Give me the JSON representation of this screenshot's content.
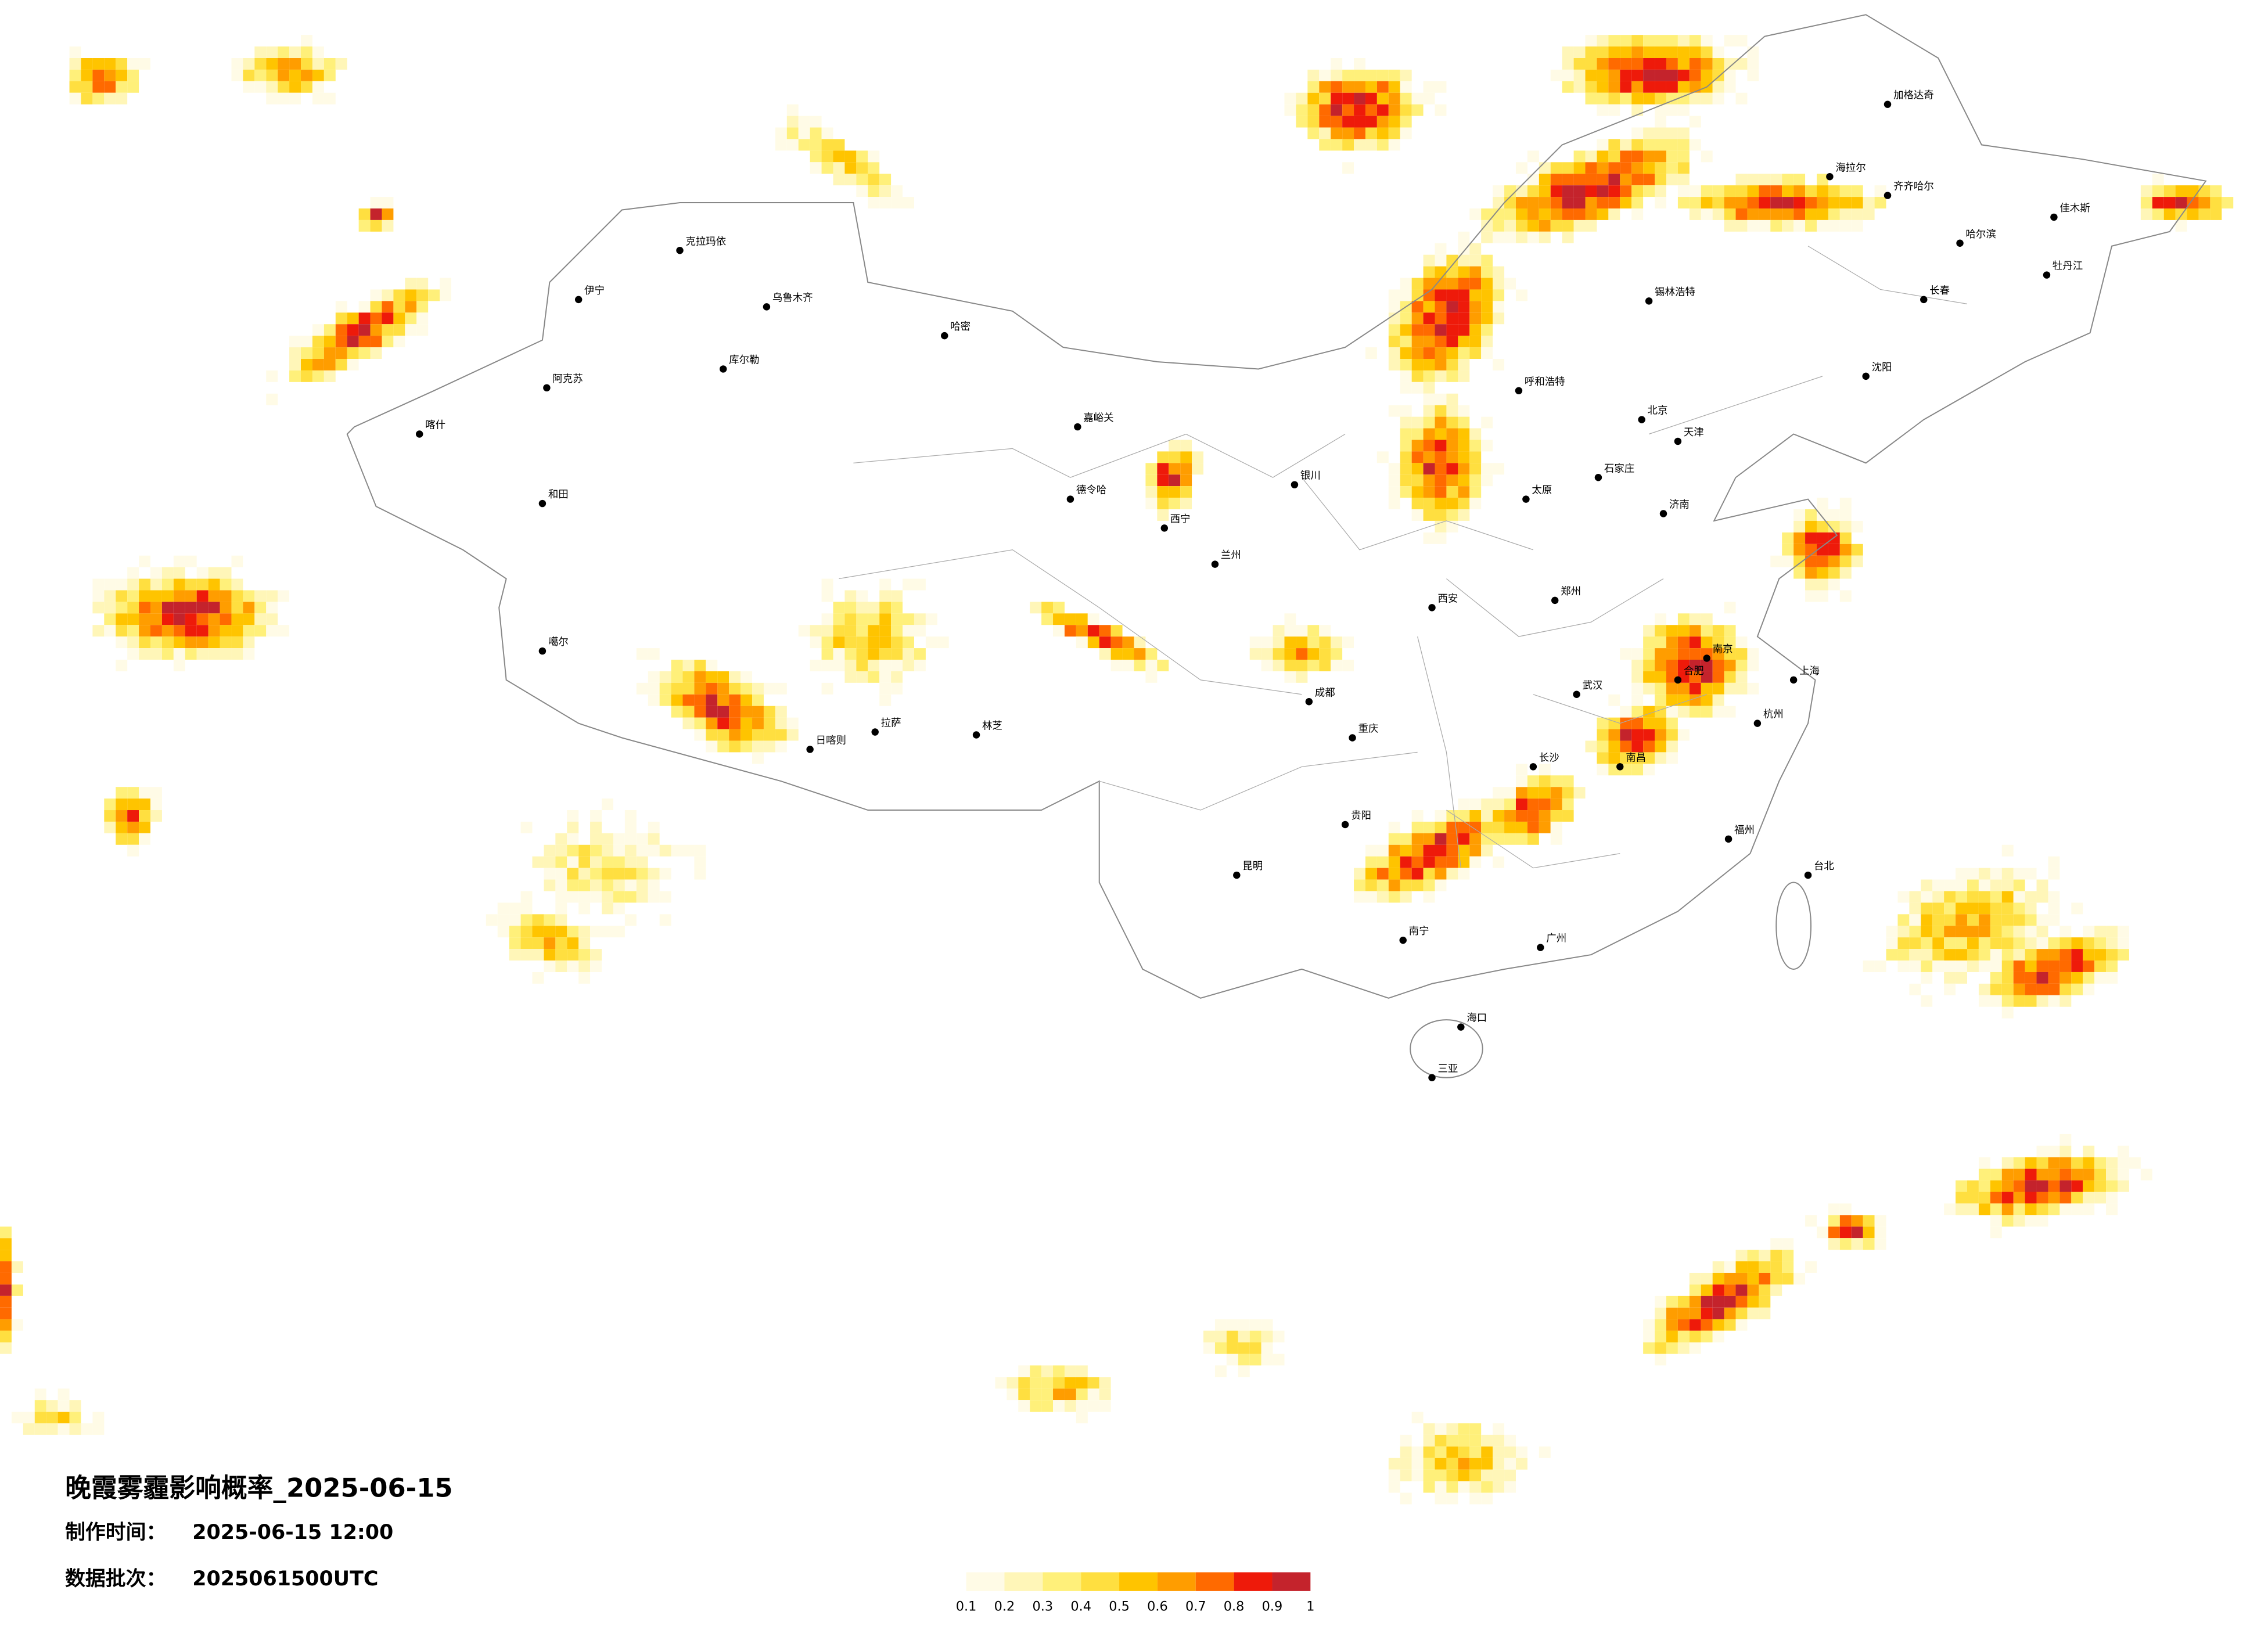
{
  "title": "晚霞雾霾影响概率_2025-06-15",
  "info": [
    {
      "label": "制作时间：",
      "value": "2025-06-15 12:00"
    },
    {
      "label": "数据批次：",
      "value": "2025061500UTC"
    }
  ],
  "legend": {
    "ticks": [
      0.1,
      0.2,
      0.3,
      0.4,
      0.5,
      0.6,
      0.7,
      0.8,
      0.9,
      1
    ],
    "colors": [
      "#fffbe6",
      "#fff6b8",
      "#fff07a",
      "#ffdf40",
      "#ffc400",
      "#ff9d00",
      "#ff6a00",
      "#ee1a0a",
      "#c4232c"
    ]
  },
  "cities": [
    "乌鲁木齐",
    "克拉玛依",
    "伊宁",
    "喀什",
    "和田",
    "阿克苏",
    "库尔勒",
    "哈密",
    "拉萨",
    "日喀则",
    "林芝",
    "噶尔",
    "德令哈",
    "嘉峪关",
    "西宁",
    "兰州",
    "银川",
    "呼和浩特",
    "西安",
    "成都",
    "重庆",
    "贵阳",
    "昆明",
    "南宁",
    "广州",
    "长沙",
    "武汉",
    "郑州",
    "太原",
    "石家庄",
    "北京",
    "天津",
    "济南",
    "南京",
    "合肥",
    "上海",
    "杭州",
    "南昌",
    "福州",
    "台北",
    "海口",
    "三亚",
    "沈阳",
    "长春",
    "哈尔滨",
    "齐齐哈尔",
    "海拉尔",
    "加格达奇",
    "佳木斯",
    "牡丹江",
    "锡林浩特"
  ]
}
